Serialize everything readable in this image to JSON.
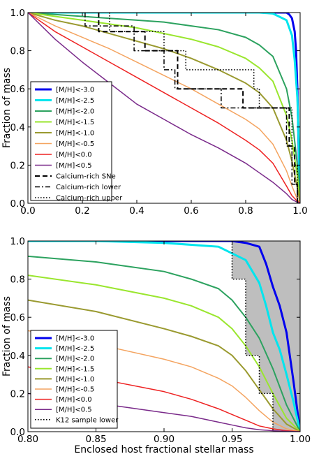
{
  "chart_data": [
    {
      "type": "line",
      "xlabel": "",
      "ylabel": "Fraction of mass",
      "xlim": [
        0.0,
        1.0
      ],
      "ylim": [
        0.0,
        1.0
      ],
      "xticks": [
        "0.0",
        "0.2",
        "0.4",
        "0.6",
        "0.8",
        "1.0"
      ],
      "yticks": [
        "0.0",
        "0.2",
        "0.4",
        "0.6",
        "0.8",
        "1.0"
      ],
      "grid": false,
      "legend_position": "lower-left",
      "series": [
        {
          "name": "[M/H]<-3.0",
          "color": "#0000ee",
          "style": "solid",
          "width": 3,
          "x": [
            0,
            0.95,
            0.96,
            0.97,
            0.98,
            0.985,
            0.99,
            0.995,
            1.0
          ],
          "y": [
            1.0,
            1.0,
            0.99,
            0.97,
            0.9,
            0.8,
            0.6,
            0.25,
            0.0
          ]
        },
        {
          "name": "[M/H]<-2.5",
          "color": "#00e5ee",
          "style": "solid",
          "width": 3,
          "x": [
            0,
            0.85,
            0.9,
            0.95,
            0.97,
            0.98,
            0.99,
            0.995,
            1.0
          ],
          "y": [
            1.0,
            1.0,
            0.995,
            0.96,
            0.88,
            0.75,
            0.55,
            0.3,
            0.0
          ]
        },
        {
          "name": "[M/H]<-2.0",
          "color": "#2ca25f",
          "style": "solid",
          "width": 2,
          "x": [
            0,
            0.1,
            0.2,
            0.3,
            0.4,
            0.5,
            0.6,
            0.7,
            0.8,
            0.85,
            0.9,
            0.95,
            0.97,
            0.99,
            1.0
          ],
          "y": [
            1.0,
            0.99,
            0.98,
            0.97,
            0.96,
            0.95,
            0.93,
            0.91,
            0.87,
            0.83,
            0.77,
            0.6,
            0.45,
            0.2,
            0.0
          ]
        },
        {
          "name": "[M/H]<-1.5",
          "color": "#9ae62e",
          "style": "solid",
          "width": 2,
          "x": [
            0,
            0.1,
            0.2,
            0.3,
            0.4,
            0.5,
            0.6,
            0.7,
            0.8,
            0.85,
            0.9,
            0.95,
            0.97,
            0.99,
            1.0
          ],
          "y": [
            1.0,
            0.98,
            0.96,
            0.94,
            0.92,
            0.89,
            0.86,
            0.82,
            0.76,
            0.71,
            0.64,
            0.46,
            0.33,
            0.14,
            0.0
          ]
        },
        {
          "name": "[M/H]<-1.0",
          "color": "#9a9a30",
          "style": "solid",
          "width": 2,
          "x": [
            0,
            0.1,
            0.2,
            0.3,
            0.4,
            0.5,
            0.6,
            0.7,
            0.8,
            0.85,
            0.9,
            0.95,
            0.97,
            0.99,
            1.0
          ],
          "y": [
            1.0,
            0.96,
            0.93,
            0.89,
            0.85,
            0.81,
            0.76,
            0.7,
            0.63,
            0.58,
            0.5,
            0.33,
            0.22,
            0.08,
            0.0
          ]
        },
        {
          "name": "[M/H]<-0.5",
          "color": "#f4a460",
          "style": "solid",
          "width": 1.5,
          "x": [
            0,
            0.1,
            0.2,
            0.3,
            0.4,
            0.5,
            0.6,
            0.7,
            0.8,
            0.85,
            0.9,
            0.95,
            0.97,
            0.99,
            1.0
          ],
          "y": [
            1.0,
            0.93,
            0.87,
            0.81,
            0.74,
            0.67,
            0.6,
            0.52,
            0.44,
            0.39,
            0.31,
            0.17,
            0.09,
            0.02,
            0.0
          ]
        },
        {
          "name": "[M/H]<0.0",
          "color": "#ee2222",
          "style": "solid",
          "width": 1.5,
          "x": [
            0,
            0.1,
            0.2,
            0.3,
            0.4,
            0.5,
            0.6,
            0.7,
            0.8,
            0.85,
            0.9,
            0.95,
            0.97,
            0.99,
            1.0
          ],
          "y": [
            1.0,
            0.9,
            0.82,
            0.74,
            0.66,
            0.58,
            0.5,
            0.42,
            0.33,
            0.28,
            0.21,
            0.09,
            0.04,
            0.01,
            0.0
          ]
        },
        {
          "name": "[M/H]<0.5",
          "color": "#7a2a8a",
          "style": "solid",
          "width": 1.5,
          "x": [
            0,
            0.1,
            0.2,
            0.3,
            0.4,
            0.5,
            0.6,
            0.7,
            0.8,
            0.85,
            0.9,
            0.95,
            0.97,
            0.99,
            1.0
          ],
          "y": [
            1.0,
            0.86,
            0.74,
            0.63,
            0.52,
            0.44,
            0.36,
            0.29,
            0.21,
            0.16,
            0.11,
            0.05,
            0.02,
            0.005,
            0.0
          ]
        },
        {
          "name": "Calcium-rich SNe",
          "color": "#000000",
          "style": "dashed",
          "width": 2,
          "x": [
            0.26,
            0.26,
            0.43,
            0.43,
            0.55,
            0.55,
            0.7,
            0.7,
            0.79,
            0.79,
            0.96,
            0.96,
            0.98,
            0.98,
            0.99,
            0.99,
            1.0
          ],
          "y": [
            1.0,
            0.9,
            0.9,
            0.8,
            0.8,
            0.6,
            0.6,
            0.6,
            0.6,
            0.5,
            0.5,
            0.3,
            0.3,
            0.1,
            0.1,
            0.0,
            0.0
          ]
        },
        {
          "name": "Calcium-rich lower",
          "color": "#000000",
          "style": "dashdot",
          "width": 1.5,
          "x": [
            0.21,
            0.21,
            0.39,
            0.39,
            0.5,
            0.5,
            0.54,
            0.54,
            0.71,
            0.71,
            0.95,
            0.95,
            0.97,
            0.97,
            0.99,
            0.99,
            1.0
          ],
          "y": [
            1.0,
            0.93,
            0.93,
            0.8,
            0.8,
            0.7,
            0.7,
            0.6,
            0.6,
            0.5,
            0.5,
            0.3,
            0.3,
            0.1,
            0.1,
            0.0,
            0.0
          ]
        },
        {
          "name": "Calcium-rich upper",
          "color": "#000000",
          "style": "dotted",
          "width": 1.5,
          "x": [
            0.3,
            0.3,
            0.5,
            0.5,
            0.58,
            0.58,
            0.83,
            0.83,
            0.85,
            0.85,
            0.97,
            0.97,
            0.99,
            0.99,
            1.0
          ],
          "y": [
            1.0,
            0.9,
            0.9,
            0.8,
            0.8,
            0.7,
            0.7,
            0.6,
            0.6,
            0.5,
            0.5,
            0.2,
            0.2,
            0.0,
            0.0
          ]
        }
      ]
    },
    {
      "type": "line",
      "xlabel": "Enclosed host fractional stellar mass",
      "ylabel": "Fraction of mass",
      "xlim": [
        0.8,
        1.0
      ],
      "ylim": [
        0.0,
        1.0
      ],
      "xticks": [
        "0.80",
        "0.85",
        "0.90",
        "0.95",
        "1.00"
      ],
      "yticks": [
        "0.0",
        "0.2",
        "0.4",
        "0.6",
        "0.8",
        "1.0"
      ],
      "grid": false,
      "legend_position": "lower-left",
      "shaded_region": {
        "color": "#bebebe",
        "x": [
          0.95,
          0.95,
          0.96,
          0.96,
          0.97,
          0.97,
          0.98,
          0.98,
          1.0,
          1.0
        ],
        "y": [
          1.0,
          0.8,
          0.8,
          0.4,
          0.4,
          0.2,
          0.2,
          0.0,
          0.0,
          1.0
        ]
      },
      "series": [
        {
          "name": "[M/H]<-3.0",
          "color": "#0000ee",
          "style": "solid",
          "width": 3,
          "x": [
            0.8,
            0.95,
            0.96,
            0.97,
            0.975,
            0.98,
            0.985,
            0.99,
            0.995,
            1.0
          ],
          "y": [
            1.0,
            1.0,
            0.99,
            0.97,
            0.88,
            0.76,
            0.66,
            0.52,
            0.27,
            0.0
          ]
        },
        {
          "name": "[M/H]<-2.5",
          "color": "#00e5ee",
          "style": "solid",
          "width": 3,
          "x": [
            0.8,
            0.85,
            0.9,
            0.94,
            0.96,
            0.97,
            0.975,
            0.98,
            0.985,
            0.99,
            0.995,
            1.0
          ],
          "y": [
            1.0,
            1.0,
            0.99,
            0.97,
            0.9,
            0.78,
            0.66,
            0.52,
            0.43,
            0.3,
            0.16,
            0.0
          ]
        },
        {
          "name": "[M/H]<-2.0",
          "color": "#2ca25f",
          "style": "solid",
          "width": 2,
          "x": [
            0.8,
            0.85,
            0.9,
            0.92,
            0.94,
            0.95,
            0.96,
            0.97,
            0.98,
            0.99,
            1.0
          ],
          "y": [
            0.92,
            0.89,
            0.84,
            0.8,
            0.75,
            0.69,
            0.6,
            0.49,
            0.33,
            0.14,
            0.0
          ]
        },
        {
          "name": "[M/H]<-1.5",
          "color": "#9ae62e",
          "style": "solid",
          "width": 2,
          "x": [
            0.8,
            0.85,
            0.9,
            0.92,
            0.94,
            0.95,
            0.96,
            0.97,
            0.98,
            0.99,
            1.0
          ],
          "y": [
            0.82,
            0.77,
            0.7,
            0.66,
            0.6,
            0.54,
            0.45,
            0.34,
            0.2,
            0.07,
            0.0
          ]
        },
        {
          "name": "[M/H]<-1.0",
          "color": "#9a9a30",
          "style": "solid",
          "width": 2,
          "x": [
            0.8,
            0.85,
            0.9,
            0.92,
            0.94,
            0.95,
            0.96,
            0.97,
            0.98,
            0.99,
            1.0
          ],
          "y": [
            0.69,
            0.63,
            0.54,
            0.5,
            0.45,
            0.4,
            0.32,
            0.22,
            0.12,
            0.04,
            0.0
          ]
        },
        {
          "name": "[M/H]<-0.5",
          "color": "#f4a460",
          "style": "solid",
          "width": 1.5,
          "x": [
            0.8,
            0.85,
            0.9,
            0.92,
            0.94,
            0.95,
            0.96,
            0.97,
            0.98,
            0.99,
            1.0
          ],
          "y": [
            0.53,
            0.46,
            0.38,
            0.34,
            0.28,
            0.24,
            0.18,
            0.11,
            0.05,
            0.015,
            0.0
          ]
        },
        {
          "name": "[M/H]<0.0",
          "color": "#ee2222",
          "style": "solid",
          "width": 1.5,
          "x": [
            0.8,
            0.85,
            0.9,
            0.92,
            0.94,
            0.95,
            0.96,
            0.97,
            0.98,
            0.99,
            1.0
          ],
          "y": [
            0.34,
            0.28,
            0.21,
            0.17,
            0.12,
            0.09,
            0.06,
            0.03,
            0.015,
            0.005,
            0.0
          ]
        },
        {
          "name": "[M/H]<0.5",
          "color": "#7a2a8a",
          "style": "solid",
          "width": 1.5,
          "x": [
            0.8,
            0.85,
            0.9,
            0.92,
            0.94,
            0.95,
            0.96,
            0.97,
            0.98,
            0.99,
            1.0
          ],
          "y": [
            0.2,
            0.15,
            0.1,
            0.08,
            0.05,
            0.035,
            0.02,
            0.01,
            0.005,
            0.002,
            0.0
          ]
        },
        {
          "name": "K12 sample lower",
          "color": "#000000",
          "style": "dotted",
          "width": 1.5,
          "x": [
            0.95,
            0.95,
            0.96,
            0.96,
            0.97,
            0.97,
            0.98,
            0.98
          ],
          "y": [
            1.0,
            0.8,
            0.8,
            0.4,
            0.4,
            0.2,
            0.2,
            0.0
          ]
        }
      ]
    }
  ]
}
